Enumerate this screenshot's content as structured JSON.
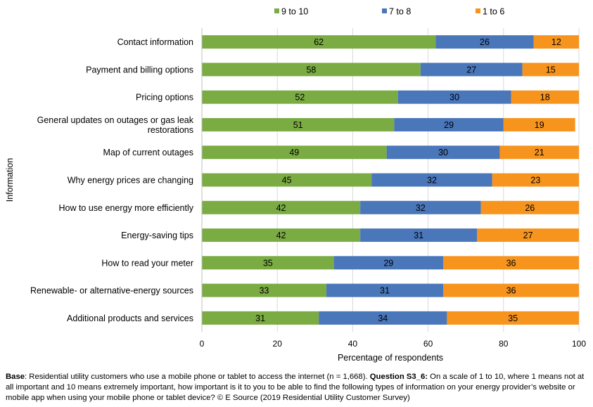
{
  "chart_data": {
    "type": "bar",
    "orientation": "horizontal",
    "stacked": true,
    "xlabel": "Percentage of respondents",
    "ylabel": "Information",
    "xlim": [
      0,
      100
    ],
    "xticks": [
      0,
      20,
      40,
      60,
      80,
      100
    ],
    "grid": true,
    "legend_position": "top",
    "categories": [
      "Contact information",
      "Payment and billing options",
      "Pricing options",
      "General updates on outages or gas leak restorations",
      "Map of current outages",
      "Why energy prices are changing",
      "How to use energy more efficiently",
      "Energy-saving tips",
      "How to read your meter",
      "Renewable- or alternative-energy sources",
      "Additional products and services"
    ],
    "series": [
      {
        "name": "9 to 10",
        "color": "#7AAC43",
        "values": [
          62,
          58,
          52,
          51,
          49,
          45,
          42,
          42,
          35,
          33,
          31
        ]
      },
      {
        "name": "7 to 8",
        "color": "#4A76BA",
        "values": [
          26,
          27,
          30,
          29,
          30,
          32,
          32,
          31,
          29,
          31,
          34
        ]
      },
      {
        "name": "1 to 6",
        "color": "#F7941D",
        "values": [
          12,
          15,
          18,
          19,
          21,
          23,
          26,
          27,
          36,
          36,
          35
        ]
      }
    ]
  },
  "footnote": {
    "base_label": "Base",
    "base_text": ": Residential utility customers who use a mobile phone or tablet to access the internet (n = 1,668). ",
    "question_label": "Question S3_6:",
    "question_text": " On a scale of 1 to 10, where 1 means not at all important and 10 means extremely important, how important is it to you to be able to find the following types of information on your energy provider’s website or mobile app when using your mobile phone or tablet device? © E Source (2019 Residential Utility Customer Survey)"
  }
}
